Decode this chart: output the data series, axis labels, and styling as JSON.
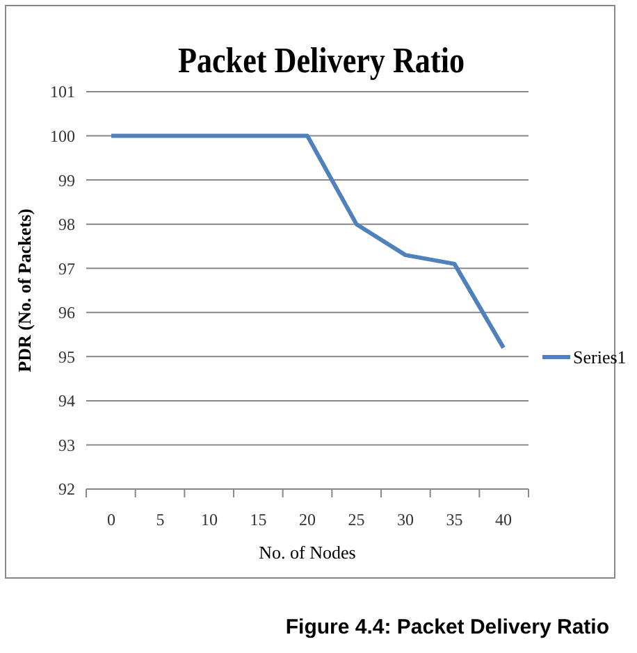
{
  "chart_data": {
    "type": "line",
    "title": "Packet Delivery Ratio",
    "xlabel": "No. of  Nodes",
    "ylabel": "PDR (No. of Packets)",
    "categories": [
      "0",
      "5",
      "10",
      "15",
      "20",
      "25",
      "30",
      "35",
      "40"
    ],
    "series": [
      {
        "name": "Series1",
        "color": "#4f81bd",
        "values": [
          100,
          100,
          100,
          100,
          100,
          98,
          97.3,
          97.1,
          95.2
        ]
      }
    ],
    "ylim": [
      92,
      101
    ],
    "yticks": [
      92,
      93,
      94,
      95,
      96,
      97,
      98,
      99,
      100,
      101
    ],
    "grid": "y",
    "legend": "right",
    "marker": "none",
    "annotations": [
      "Figure 4.4: Packet Delivery Ratio"
    ]
  }
}
